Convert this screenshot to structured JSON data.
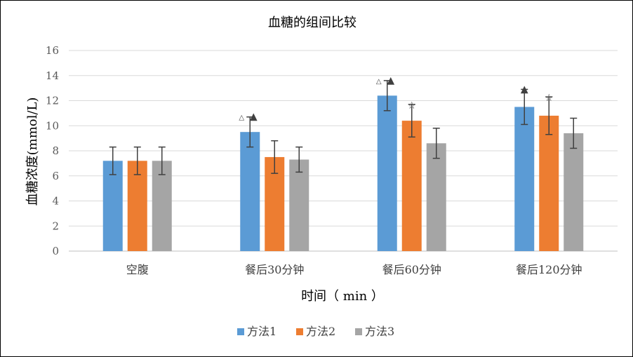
{
  "chart_data": {
    "type": "bar",
    "title": "血糖的组间比较",
    "xlabel": "时间（ min ）",
    "ylabel": "血糖浓度(mmol/L)",
    "ylim": [
      0,
      16
    ],
    "yticks": [
      0,
      2,
      4,
      6,
      8,
      10,
      12,
      14,
      16
    ],
    "grid": true,
    "legend_position": "bottom",
    "categories": [
      "空腹",
      "餐后30分钟",
      "餐后60分钟",
      "餐后120分钟"
    ],
    "series": [
      {
        "name": "方法1",
        "color": "#5B9BD5",
        "values": [
          7.2,
          9.5,
          12.4,
          11.5
        ],
        "errors": [
          1.1,
          1.2,
          1.2,
          1.4
        ]
      },
      {
        "name": "方法2",
        "color": "#ED7D31",
        "values": [
          7.2,
          7.5,
          10.4,
          10.8
        ],
        "errors": [
          1.1,
          1.3,
          1.3,
          1.5
        ]
      },
      {
        "name": "方法3",
        "color": "#A5A5A5",
        "values": [
          7.2,
          7.3,
          8.6,
          9.4
        ],
        "errors": [
          1.1,
          1.0,
          1.2,
          1.2
        ]
      }
    ],
    "annotations": [
      {
        "category": 1,
        "series": 0,
        "marks": [
          "△",
          "▲"
        ]
      },
      {
        "category": 2,
        "series": 0,
        "marks": [
          "△",
          "▲"
        ]
      },
      {
        "category": 2,
        "series": 1,
        "marks": [
          "☆"
        ]
      },
      {
        "category": 3,
        "series": 0,
        "marks": [
          "▲"
        ]
      },
      {
        "category": 3,
        "series": 1,
        "marks": [
          "☆"
        ]
      }
    ]
  }
}
